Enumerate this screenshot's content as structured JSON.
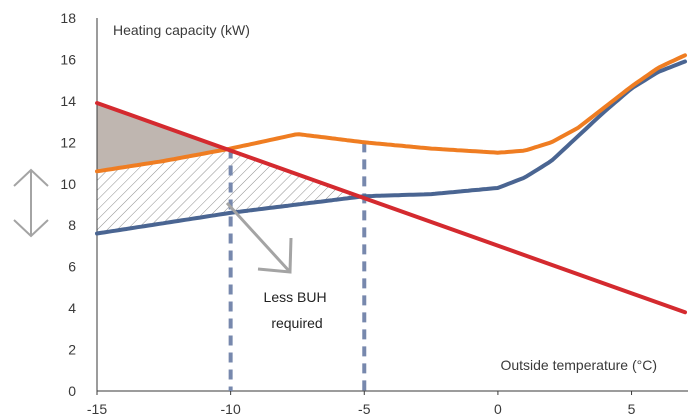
{
  "chart_data": {
    "type": "line",
    "title": "",
    "ylabel": "Heating capacity (kW)",
    "xlabel": "Outside temperature (°C)",
    "xlim": [
      -15,
      7
    ],
    "ylim": [
      0,
      18
    ],
    "x_ticks": [
      -15,
      -10,
      -5,
      0,
      5
    ],
    "y_ticks": [
      0,
      2,
      4,
      6,
      8,
      10,
      12,
      14,
      16,
      18
    ],
    "grid": false,
    "series": [
      {
        "color": "#d42a2f",
        "x": [
          -15,
          7
        ],
        "y": [
          13.9,
          3.8
        ]
      },
      {
        "color": "#ef7d22",
        "x": [
          -15,
          -12.5,
          -10,
          -7.5,
          -5,
          -2.5,
          0,
          1,
          2,
          3,
          4,
          5,
          6,
          7
        ],
        "y": [
          10.6,
          11.1,
          11.7,
          12.4,
          12.0,
          11.7,
          11.5,
          11.6,
          12.0,
          12.7,
          13.7,
          14.7,
          15.6,
          16.2
        ]
      },
      {
        "color": "#4a6592",
        "x": [
          -15,
          -12.5,
          -10,
          -7.5,
          -5,
          -2.5,
          0,
          1,
          2,
          3,
          4,
          5,
          6,
          7
        ],
        "y": [
          7.6,
          8.1,
          8.6,
          9.0,
          9.4,
          9.5,
          9.8,
          10.3,
          11.1,
          12.3,
          13.5,
          14.6,
          15.4,
          15.9
        ]
      }
    ],
    "vertical_markers": [
      -10,
      -5
    ],
    "annotations": [
      {
        "text_lines": [
          "Less BUH",
          "required"
        ]
      }
    ]
  },
  "colors": {
    "axis": "#3a3a3a",
    "fill_region": "#bfb6b0",
    "hatch": "#8f8f8f",
    "marker": "#7788ad",
    "arrow": "#a4a4a4"
  }
}
